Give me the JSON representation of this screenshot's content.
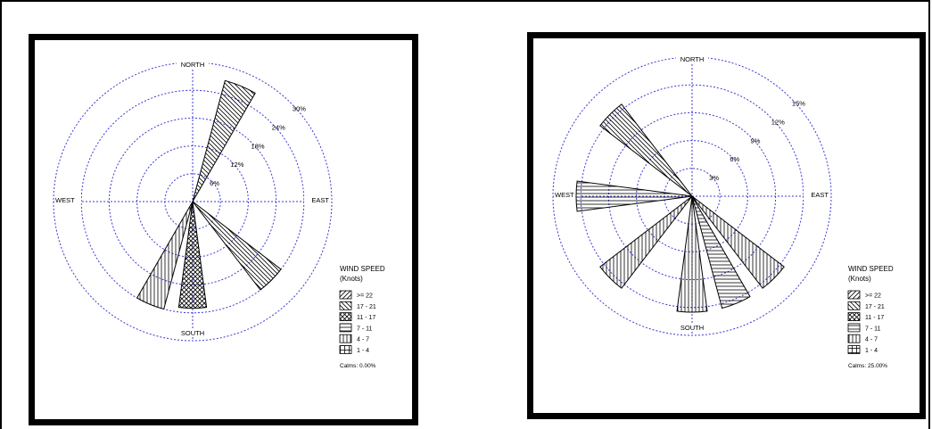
{
  "chart_data": [
    {
      "type": "windrose",
      "directions": [
        "NORTH",
        "EAST",
        "SOUTH",
        "WEST"
      ],
      "ring_labels": [
        "6%",
        "12%",
        "18%",
        "24%",
        "30%"
      ],
      "rmax": 30,
      "bins": [
        ">= 22",
        "17 - 21",
        "11 - 17",
        "7 - 11",
        "4 - 7",
        "1 - 4"
      ],
      "petals": [
        {
          "bearing": 22.5,
          "value": 27,
          "bin": "17 - 21"
        },
        {
          "bearing": 135,
          "value": 24,
          "bin": "17 - 21"
        },
        {
          "bearing": 180,
          "value": 23,
          "bin": "11 - 17"
        },
        {
          "bearing": 202.5,
          "value": 24,
          "bin": "4 - 7"
        }
      ],
      "legend_title": "WIND SPEED",
      "legend_subtitle": "(Knots)",
      "calms": "Calms: 0.00%"
    },
    {
      "type": "windrose",
      "directions": [
        "NORTH",
        "EAST",
        "SOUTH",
        "WEST"
      ],
      "ring_labels": [
        "3%",
        "6%",
        "9%",
        "12%",
        "15%"
      ],
      "rmax": 15,
      "bins": [
        ">= 22",
        "17 - 21",
        "11 - 17",
        "7 - 11",
        "4 - 7",
        "1 - 4"
      ],
      "petals": [
        {
          "bearing": 135,
          "value": 12.5,
          "bin": "4 - 7"
        },
        {
          "bearing": 157.5,
          "value": 12.5,
          "bin": "7 - 11"
        },
        {
          "bearing": 180,
          "value": 12.5,
          "bin": "4 - 7"
        },
        {
          "bearing": 225,
          "value": 12.5,
          "bin": "4 - 7"
        },
        {
          "bearing": 270,
          "value": 12.5,
          "bin": "7 - 11"
        },
        {
          "bearing": 315,
          "value": 12.5,
          "bin": "17 - 21"
        }
      ],
      "legend_title": "WIND SPEED",
      "legend_subtitle": "(Knots)",
      "calms": "Calms: 25.00%"
    }
  ]
}
